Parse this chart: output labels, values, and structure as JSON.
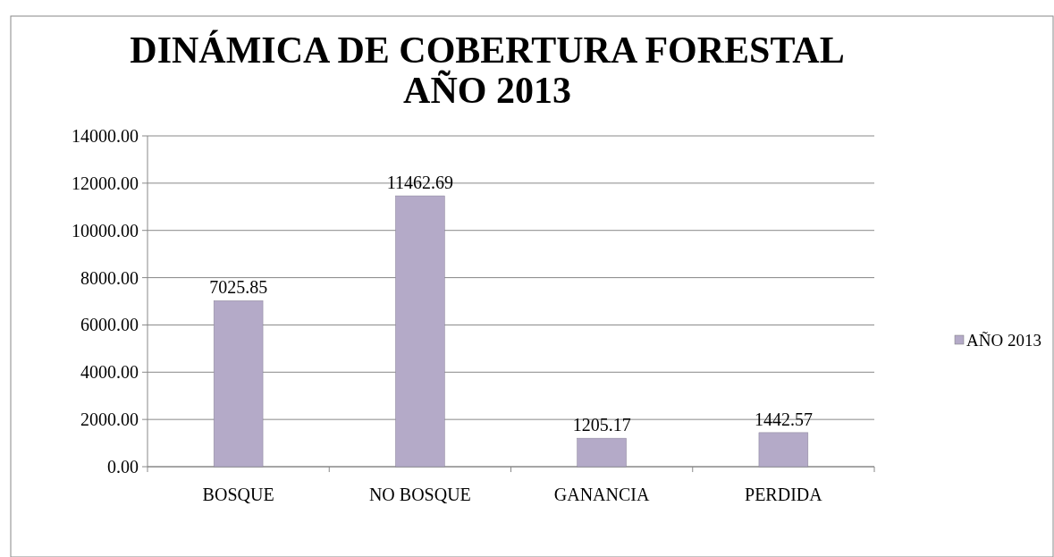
{
  "chart_data": {
    "type": "bar",
    "title": "DINÁMICA DE COBERTURA FORESTAL\nAÑO 2013",
    "categories": [
      "BOSQUE",
      "NO BOSQUE",
      "GANANCIA",
      "PERDIDA"
    ],
    "series": [
      {
        "name": "AÑO 2013",
        "color": "#b4aac8",
        "values": [
          7025.85,
          11462.69,
          1205.17,
          1442.57
        ]
      }
    ],
    "data_labels": true,
    "ylim": [
      0,
      14000
    ],
    "yticks": [
      {
        "value": 0,
        "label": "0.00"
      },
      {
        "value": 2000,
        "label": "2000.00"
      },
      {
        "value": 4000,
        "label": "4000.00"
      },
      {
        "value": 6000,
        "label": "6000.00"
      },
      {
        "value": 8000,
        "label": "8000.00"
      },
      {
        "value": 10000,
        "label": "10000.00"
      },
      {
        "value": 12000,
        "label": "12000.00"
      },
      {
        "value": 14000,
        "label": "14000.00"
      }
    ],
    "grid": "y",
    "legend": "right"
  }
}
